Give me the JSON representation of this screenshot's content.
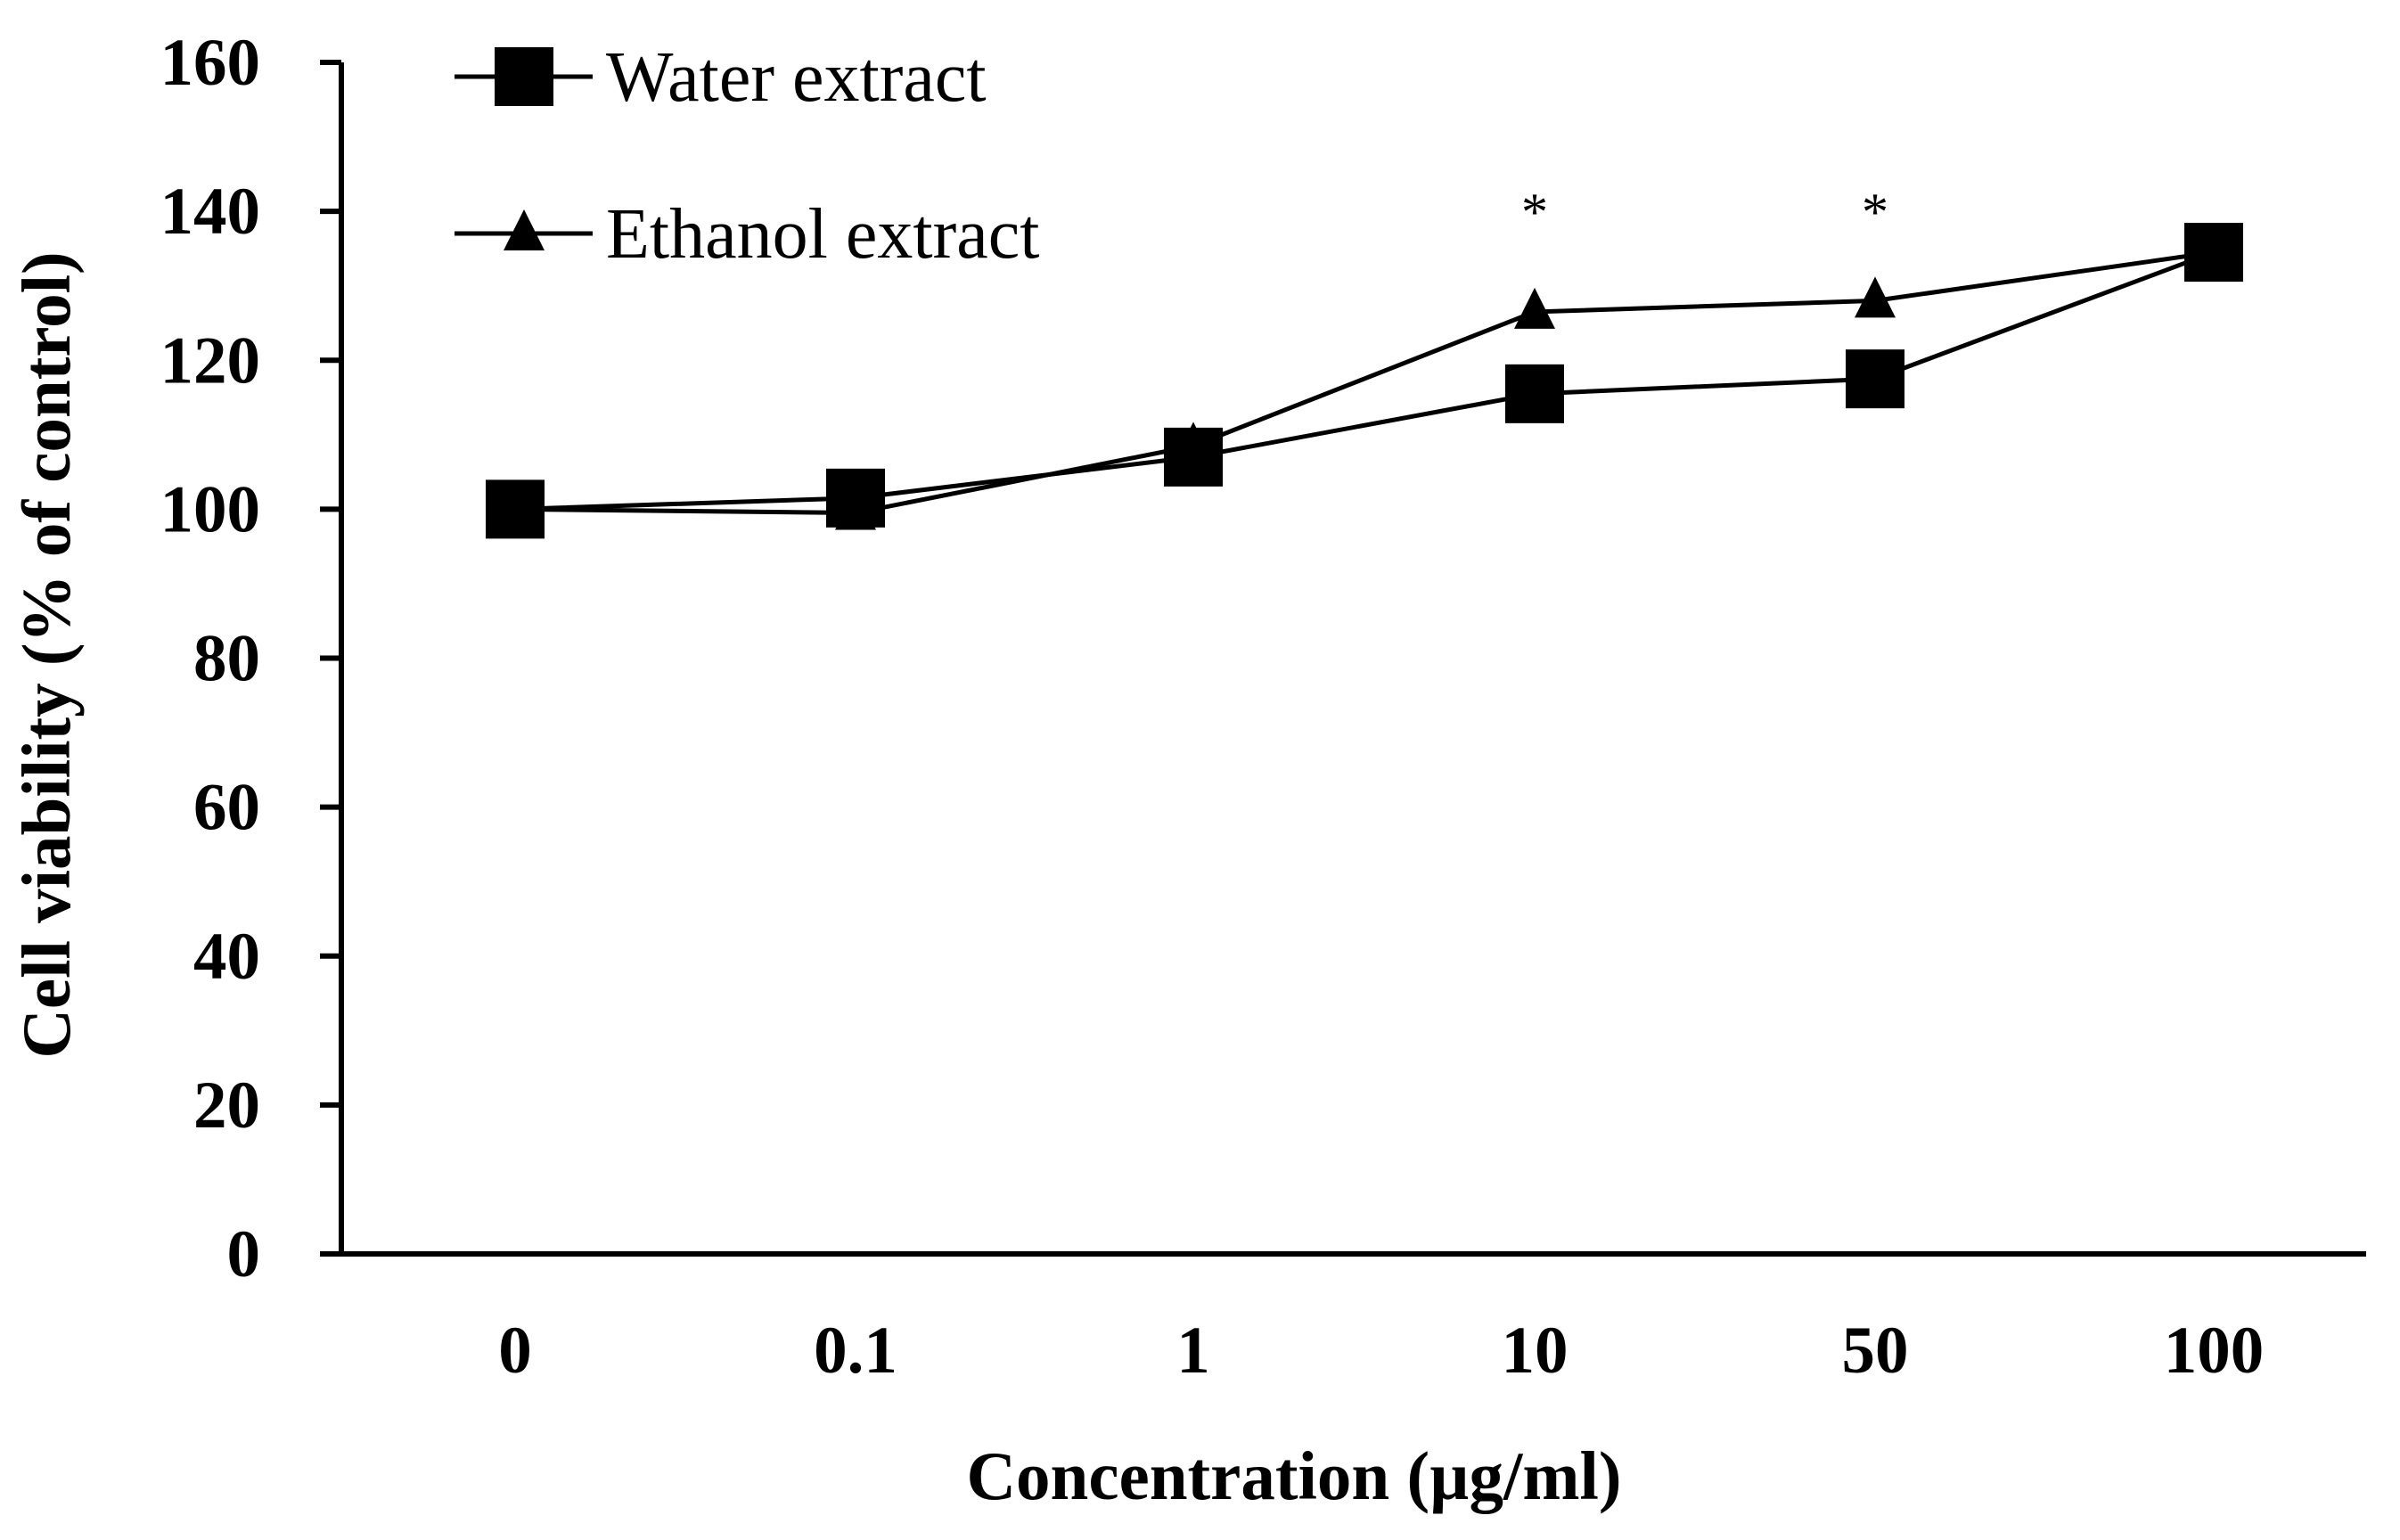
{
  "chart_data": {
    "type": "line",
    "title": "",
    "xlabel": "Concentration (µg/ml)",
    "ylabel": "Cell viability (%  of control)",
    "categories": [
      "0",
      "0.1",
      "1",
      "10",
      "50",
      "100"
    ],
    "ylim": [
      0,
      160
    ],
    "yticks": [
      "0",
      "20",
      "40",
      "60",
      "80",
      "100",
      "120",
      "140",
      "160"
    ],
    "grid": false,
    "legend_position": "top-left",
    "series": [
      {
        "name": "Water extract",
        "marker": "square",
        "values": [
          100,
          101.5,
          107,
          115.5,
          117.5,
          134.5
        ]
      },
      {
        "name": "Ethanol extract",
        "marker": "triangle",
        "values": [
          100,
          99.5,
          108.5,
          126.5,
          128,
          134.5
        ]
      }
    ],
    "annotations": [
      {
        "category": "10",
        "text": "*"
      },
      {
        "category": "50",
        "text": "*"
      }
    ],
    "colors": {
      "line": "#000000",
      "marker": "#000000"
    }
  }
}
